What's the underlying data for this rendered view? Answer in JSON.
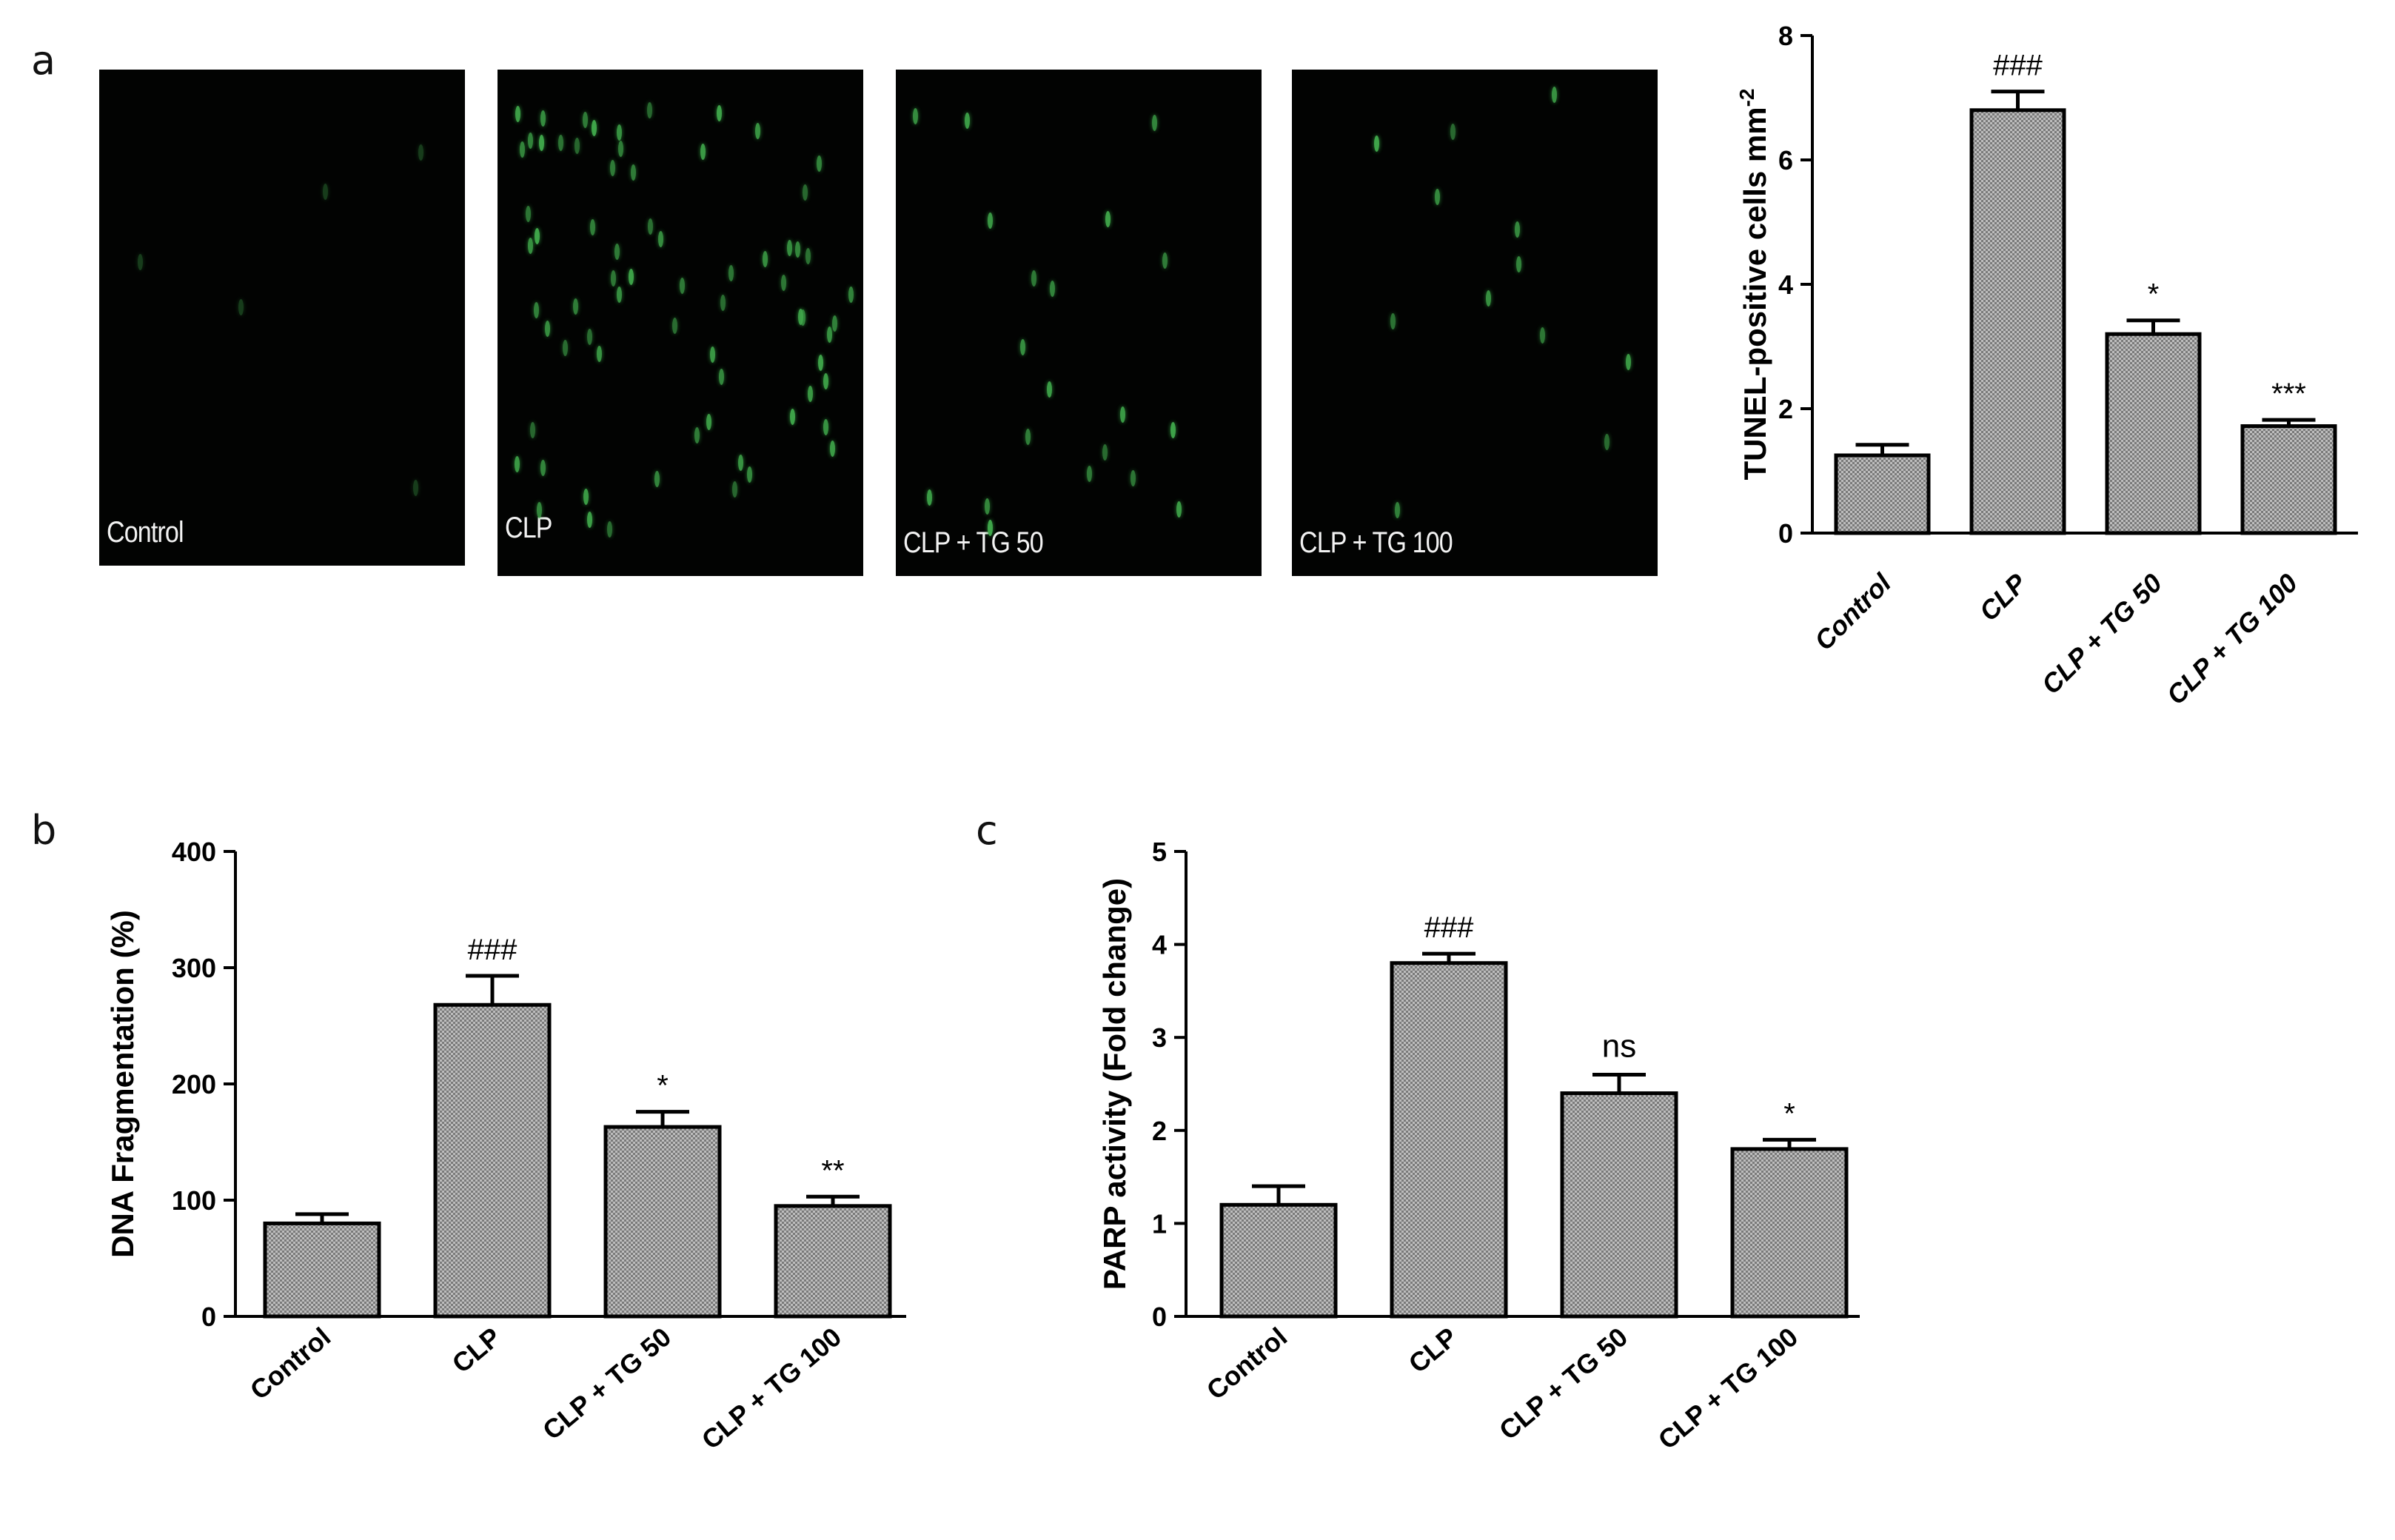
{
  "panels": {
    "a": "a",
    "b": "b",
    "c": "c"
  },
  "micrographs": [
    {
      "caption": "Control",
      "cells": 5
    },
    {
      "caption": "CLP",
      "cells": 70
    },
    {
      "caption": "CLP + TG 50",
      "cells": 20
    },
    {
      "caption": "CLP + TG 100",
      "cells": 12
    }
  ],
  "colors": {
    "bar_fill": "#bdbdbd",
    "bar_pattern": "#7a7a7a",
    "axis": "#000000",
    "cell_stain": "#3fa64a"
  },
  "chart_data": [
    {
      "id": "a",
      "type": "bar",
      "categories": [
        "Control",
        "CLP",
        "CLP + TG 50",
        "CLP + TG 100"
      ],
      "values": [
        1.25,
        6.8,
        3.2,
        1.72
      ],
      "errors": [
        0.17,
        0.3,
        0.22,
        0.1
      ],
      "annotations": [
        "",
        "###",
        "*",
        "***"
      ],
      "ylabel": "TUNEL-positive cells mm",
      "ylabel_sup": "-2",
      "ylim": [
        0,
        8
      ],
      "yticks": [
        0,
        2,
        4,
        6,
        8
      ],
      "tick_italic": true
    },
    {
      "id": "b",
      "type": "bar",
      "categories": [
        "Control",
        "CLP",
        "CLP + TG 50",
        "CLP + TG 100"
      ],
      "values": [
        80,
        268,
        163,
        95
      ],
      "errors": [
        8,
        25,
        13,
        8
      ],
      "annotations": [
        "",
        "###",
        "*",
        "**"
      ],
      "ylabel": "DNA Fragmentation (%)",
      "ylabel_sup": "",
      "ylim": [
        0,
        400
      ],
      "yticks": [
        0,
        100,
        200,
        300,
        400
      ],
      "tick_italic": false
    },
    {
      "id": "c",
      "type": "bar",
      "categories": [
        "Control",
        "CLP",
        "CLP + TG 50",
        "CLP + TG 100"
      ],
      "values": [
        1.2,
        3.8,
        2.4,
        1.8
      ],
      "errors": [
        0.2,
        0.1,
        0.2,
        0.1
      ],
      "annotations": [
        "",
        "###",
        "ns",
        "*"
      ],
      "ylabel": "PARP activity (Fold change)",
      "ylabel_sup": "",
      "ylim": [
        0,
        5
      ],
      "yticks": [
        0,
        1,
        2,
        3,
        4,
        5
      ],
      "tick_italic": false
    }
  ]
}
